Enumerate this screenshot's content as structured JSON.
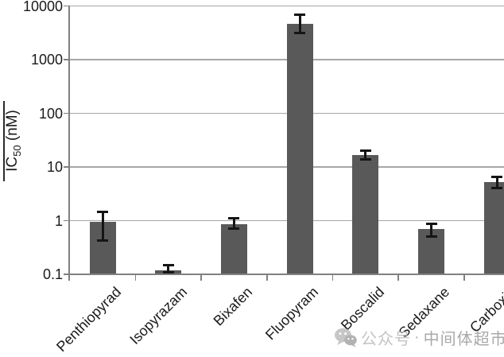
{
  "chart_data": {
    "type": "bar",
    "title": "",
    "xlabel": "",
    "ylabel": {
      "prefix": "IC",
      "sub": "50",
      "suffix": " (nM)"
    },
    "y_scale": "log",
    "ylim": [
      0.1,
      10000
    ],
    "grid": true,
    "legend": "none",
    "categories": [
      "Penthiopyrad",
      "Isopyrazam",
      "Bixafen",
      "Fluopyram",
      "Boscalid",
      "Sedaxane",
      "Carboxin"
    ],
    "values": [
      0.95,
      0.12,
      0.85,
      4700,
      16.5,
      0.7,
      5.2
    ],
    "error_low": [
      0.42,
      0.11,
      0.7,
      3100,
      13.8,
      0.5,
      4.1
    ],
    "error_high": [
      1.45,
      0.15,
      1.1,
      6900,
      20,
      0.88,
      6.5
    ],
    "yticks": [
      "10000",
      "1000",
      "100",
      "10",
      "1",
      "0.1"
    ],
    "ytick_values": [
      10000,
      1000,
      100,
      10,
      1,
      0.1
    ],
    "bar_color": "#595959",
    "gridline_color": "#a6a6a6",
    "axis_color": "#808080",
    "error_bar_color": "#151515",
    "text_color": "#1a1a1a"
  },
  "watermark": {
    "icon": "wechat-icon",
    "prefix": "公众号",
    "separator": "·",
    "name": "中间体超市",
    "prefix_color": "#c3c3c3",
    "separator_color": "#b5b5b5",
    "name_color": "#a9a9a9"
  }
}
